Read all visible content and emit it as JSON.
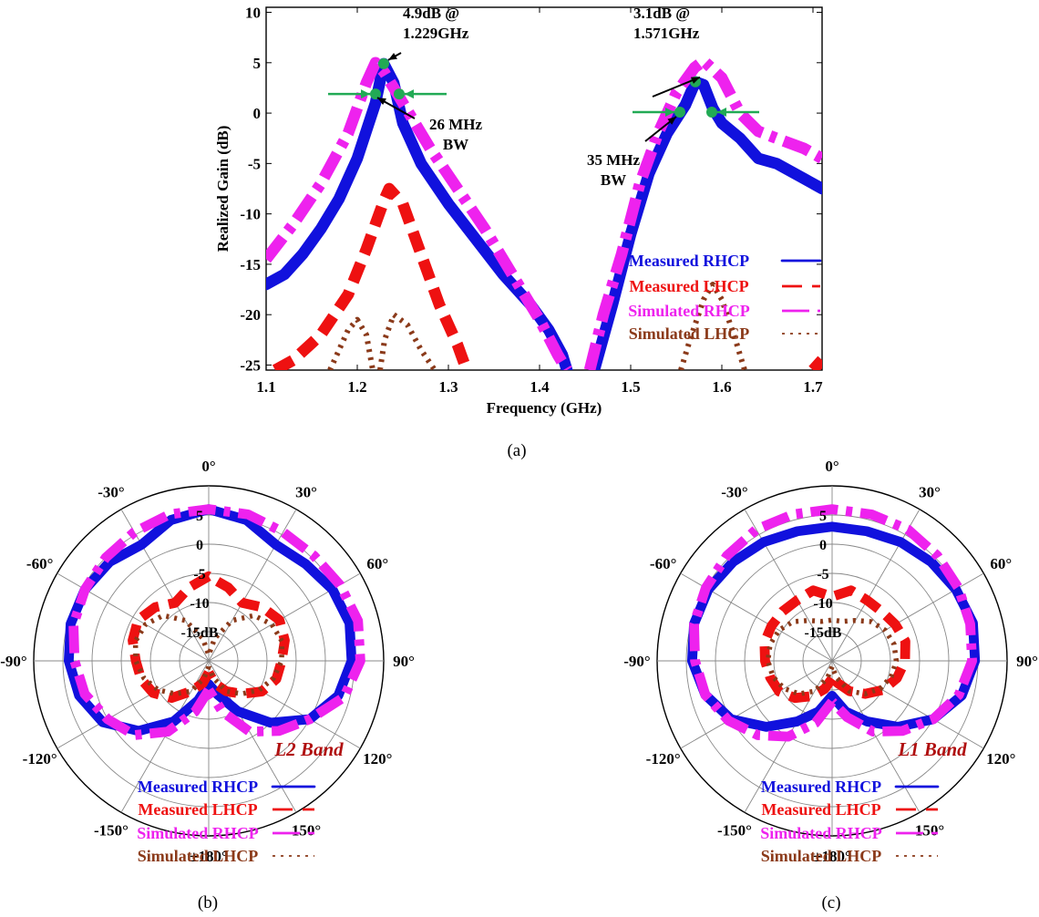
{
  "figure_labels": {
    "a": "(a)",
    "b": "(b)",
    "c": "(c)"
  },
  "colors": {
    "measured_rhcp": "#1111dd",
    "measured_lhcp": "#ee1111",
    "simulated_rhcp": "#ee22ee",
    "simulated_lhcp": "#8b3a1a",
    "marker": "#22aa55",
    "band_label": "#b01010",
    "grid": "#888888"
  },
  "chart_data": [
    {
      "id": "a",
      "type": "line",
      "xlabel": "Frequency (GHz)",
      "ylabel": "Realized Gain (dB)",
      "xlim": [
        1.1,
        1.71
      ],
      "ylim": [
        -25.5,
        10.5
      ],
      "xticks": [
        "1.1",
        "1.2",
        "1.3",
        "1.4",
        "1.5",
        "1.6",
        "1.7"
      ],
      "yticks": [
        "10",
        "5",
        "0",
        "-5",
        "-10",
        "-15",
        "-20",
        "-25"
      ],
      "grid": false,
      "legend_position": "bottom-right",
      "series": [
        {
          "name": "Measured RHCP",
          "style": "solid",
          "color": "#1111dd",
          "segments": [
            [
              [
                1.1,
                -17
              ],
              [
                1.12,
                -16
              ],
              [
                1.14,
                -14
              ],
              [
                1.16,
                -11.5
              ],
              [
                1.18,
                -8.5
              ],
              [
                1.2,
                -4.5
              ],
              [
                1.22,
                1
              ],
              [
                1.229,
                4.9
              ],
              [
                1.24,
                3
              ],
              [
                1.25,
                -1
              ],
              [
                1.27,
                -5
              ],
              [
                1.3,
                -9
              ],
              [
                1.33,
                -12.5
              ],
              [
                1.36,
                -16
              ],
              [
                1.39,
                -19
              ],
              [
                1.41,
                -21.5
              ],
              [
                1.425,
                -24
              ],
              [
                1.43,
                -25.5
              ]
            ],
            [
              [
                1.46,
                -25.5
              ],
              [
                1.48,
                -19
              ],
              [
                1.5,
                -12
              ],
              [
                1.52,
                -6
              ],
              [
                1.54,
                -2
              ],
              [
                1.56,
                0.8
              ],
              [
                1.571,
                3.1
              ],
              [
                1.58,
                2.8
              ],
              [
                1.59,
                0.5
              ],
              [
                1.6,
                -1
              ],
              [
                1.62,
                -2.5
              ],
              [
                1.64,
                -4.5
              ],
              [
                1.66,
                -5
              ],
              [
                1.69,
                -6.5
              ],
              [
                1.71,
                -7.5
              ]
            ]
          ]
        },
        {
          "name": "Measured LHCP",
          "style": "dashed",
          "color": "#ee1111",
          "segments": [
            [
              [
                1.11,
                -25.5
              ],
              [
                1.13,
                -24.5
              ],
              [
                1.16,
                -22
              ],
              [
                1.19,
                -18
              ],
              [
                1.21,
                -13.5
              ],
              [
                1.23,
                -8.5
              ],
              [
                1.235,
                -7.5
              ],
              [
                1.25,
                -9
              ],
              [
                1.27,
                -14
              ],
              [
                1.29,
                -19
              ],
              [
                1.31,
                -23
              ],
              [
                1.32,
                -25.5
              ]
            ],
            [
              [
                1.7,
                -25.5
              ],
              [
                1.71,
                -24.5
              ]
            ]
          ]
        },
        {
          "name": "Simulated RHCP",
          "style": "dashdot",
          "color": "#ee22ee",
          "segments": [
            [
              [
                1.1,
                -14.5
              ],
              [
                1.13,
                -11
              ],
              [
                1.16,
                -7
              ],
              [
                1.19,
                -2
              ],
              [
                1.21,
                3
              ],
              [
                1.22,
                5
              ],
              [
                1.23,
                4
              ],
              [
                1.25,
                1
              ],
              [
                1.28,
                -3.5
              ],
              [
                1.31,
                -7.5
              ],
              [
                1.34,
                -11.5
              ],
              [
                1.37,
                -16
              ],
              [
                1.4,
                -20.5
              ],
              [
                1.42,
                -24
              ],
              [
                1.43,
                -25.5
              ]
            ],
            [
              [
                1.455,
                -25.5
              ],
              [
                1.47,
                -20
              ],
              [
                1.49,
                -14
              ],
              [
                1.51,
                -7
              ],
              [
                1.53,
                -2
              ],
              [
                1.55,
                2
              ],
              [
                1.57,
                4.5
              ],
              [
                1.58,
                5.2
              ],
              [
                1.6,
                3.5
              ],
              [
                1.62,
                0
              ],
              [
                1.64,
                -1.8
              ],
              [
                1.66,
                -2.5
              ],
              [
                1.69,
                -3.5
              ],
              [
                1.71,
                -4.5
              ]
            ]
          ]
        },
        {
          "name": "Simulated LHCP",
          "style": "dotted",
          "color": "#8b3a1a",
          "segments": [
            [
              [
                1.17,
                -25.5
              ],
              [
                1.18,
                -23.5
              ],
              [
                1.19,
                -21.5
              ],
              [
                1.2,
                -20.5
              ],
              [
                1.21,
                -22
              ],
              [
                1.215,
                -24.5
              ],
              [
                1.217,
                -25.5
              ]
            ],
            [
              [
                1.225,
                -25.5
              ],
              [
                1.23,
                -22.5
              ],
              [
                1.24,
                -20
              ],
              [
                1.255,
                -21
              ],
              [
                1.27,
                -23.5
              ],
              [
                1.285,
                -25.5
              ]
            ],
            [
              [
                1.555,
                -25.5
              ],
              [
                1.565,
                -22.5
              ],
              [
                1.58,
                -18.5
              ],
              [
                1.59,
                -17
              ],
              [
                1.6,
                -18.5
              ],
              [
                1.615,
                -22.5
              ],
              [
                1.625,
                -25.5
              ]
            ]
          ]
        }
      ],
      "annotations": [
        {
          "text_lines": [
            "4.9dB @",
            "1.229GHz"
          ],
          "point": [
            1.229,
            4.9
          ]
        },
        {
          "text_lines": [
            "26 MHz",
            "BW"
          ],
          "points": [
            [
              1.22,
              1.9
            ],
            [
              1.246,
              1.9
            ]
          ]
        },
        {
          "text_lines": [
            "3.1dB @",
            "1.571GHz"
          ],
          "point": [
            1.571,
            3.1
          ]
        },
        {
          "text_lines": [
            "35 MHz",
            "BW"
          ],
          "points": [
            [
              1.554,
              0.1
            ],
            [
              1.589,
              0.1
            ]
          ]
        }
      ]
    },
    {
      "id": "b",
      "type": "polar",
      "band_label": "L2 Band",
      "angle_labels": [
        "0°",
        "30°",
        "60°",
        "90°",
        "120°",
        "150°",
        "±180°",
        "-150°",
        "-120°",
        "-90°",
        "-60°",
        "-30°"
      ],
      "radial_labels": [
        "5",
        "0",
        "-5",
        "-10",
        "-15dB"
      ],
      "rlim": [
        -20,
        10
      ],
      "legend_position": "bottom",
      "series": [
        {
          "name": "Measured RHCP",
          "style": "solid",
          "color": "#1111dd",
          "theta": [
            -180,
            -165,
            -150,
            -135,
            -120,
            -105,
            -90,
            -75,
            -60,
            -45,
            -30,
            -15,
            0,
            15,
            30,
            45,
            60,
            75,
            90,
            105,
            120,
            135,
            150,
            165,
            180
          ],
          "r": [
            -16,
            -13,
            -8,
            -3,
            1,
            3,
            4,
            4.5,
            4.5,
            4,
            3,
            5,
            6,
            5,
            3,
            3.5,
            4.5,
            5,
            4.5,
            3,
            0,
            -5,
            -10,
            -14,
            -16
          ]
        },
        {
          "name": "Measured LHCP",
          "style": "dashed",
          "color": "#ee1111",
          "theta": [
            -180,
            -165,
            -150,
            -135,
            -120,
            -105,
            -90,
            -75,
            -60,
            -45,
            -30,
            -15,
            0,
            15,
            30,
            45,
            60,
            75,
            90,
            105,
            120,
            135,
            150,
            165,
            180
          ],
          "r": [
            -18,
            -16,
            -14,
            -11,
            -9,
            -8,
            -7.5,
            -6.5,
            -6,
            -7,
            -8.5,
            -7,
            -5.5,
            -7,
            -8.5,
            -7,
            -6,
            -6.5,
            -7.5,
            -8,
            -9.5,
            -12,
            -14,
            -16,
            -18
          ]
        },
        {
          "name": "Simulated RHCP",
          "style": "dashdot",
          "color": "#ee22ee",
          "theta": [
            -180,
            -165,
            -150,
            -135,
            -120,
            -105,
            -90,
            -75,
            -60,
            -45,
            -30,
            -15,
            0,
            15,
            30,
            45,
            60,
            75,
            90,
            105,
            120,
            135,
            150,
            165,
            180
          ],
          "r": [
            -15,
            -11,
            -6,
            -2,
            0,
            2,
            3,
            4,
            4.5,
            5,
            5.5,
            6,
            6,
            6,
            5.5,
            5.5,
            6,
            6.5,
            6,
            4,
            0,
            -3,
            -6,
            -11,
            -15
          ]
        },
        {
          "name": "Simulated LHCP",
          "style": "dotted",
          "color": "#8b3a1a",
          "theta": [
            -180,
            -165,
            -150,
            -135,
            -120,
            -105,
            -90,
            -75,
            -60,
            -45,
            -30,
            -15,
            0,
            15,
            30,
            45,
            60,
            75,
            90,
            105,
            120,
            135,
            150,
            165,
            180
          ],
          "r": [
            -19,
            -17,
            -14,
            -12,
            -10,
            -8.5,
            -7.5,
            -7,
            -7.5,
            -9,
            -12,
            -16,
            -19,
            -16,
            -12,
            -9,
            -7.5,
            -7,
            -7.5,
            -8.5,
            -10,
            -12,
            -14,
            -17,
            -19
          ]
        }
      ]
    },
    {
      "id": "c",
      "type": "polar",
      "band_label": "L1 Band",
      "angle_labels": [
        "0°",
        "30°",
        "60°",
        "90°",
        "120°",
        "150°",
        "±180°",
        "-150°",
        "-120°",
        "-90°",
        "-60°",
        "-30°"
      ],
      "radial_labels": [
        "5",
        "0",
        "-5",
        "-10",
        "-15dB"
      ],
      "rlim": [
        -20,
        10
      ],
      "legend_position": "bottom",
      "series": [
        {
          "name": "Measured RHCP",
          "style": "solid",
          "color": "#1111dd",
          "theta": [
            -180,
            -165,
            -150,
            -135,
            -120,
            -105,
            -90,
            -75,
            -60,
            -45,
            -30,
            -15,
            0,
            15,
            30,
            45,
            60,
            75,
            90,
            105,
            120,
            135,
            150,
            165,
            180
          ],
          "r": [
            -14,
            -11,
            -8,
            -4,
            0,
            2.5,
            4,
            4.5,
            4.5,
            4,
            3.5,
            3,
            3,
            3,
            3.5,
            4,
            4.5,
            5,
            4.5,
            3,
            0,
            -4,
            -8,
            -11,
            -14
          ]
        },
        {
          "name": "Measured LHCP",
          "style": "dashed",
          "color": "#ee1111",
          "theta": [
            -180,
            -165,
            -150,
            -135,
            -120,
            -105,
            -90,
            -75,
            -60,
            -45,
            -30,
            -15,
            0,
            15,
            30,
            45,
            60,
            75,
            90,
            105,
            120,
            135,
            150,
            165,
            180
          ],
          "r": [
            -17,
            -15,
            -13,
            -11,
            -9.5,
            -9,
            -8.5,
            -8,
            -8,
            -8,
            -8,
            -7.5,
            -9,
            -7.5,
            -8,
            -8,
            -7.5,
            -7,
            -7.5,
            -8.5,
            -10,
            -12,
            -14,
            -16,
            -17
          ]
        },
        {
          "name": "Simulated RHCP",
          "style": "dashdot",
          "color": "#ee22ee",
          "theta": [
            -180,
            -165,
            -150,
            -135,
            -120,
            -105,
            -90,
            -75,
            -60,
            -45,
            -30,
            -15,
            0,
            15,
            30,
            45,
            60,
            75,
            90,
            105,
            120,
            135,
            150,
            165,
            180
          ],
          "r": [
            -13,
            -9,
            -5,
            -2,
            0.5,
            2.5,
            3.5,
            4.5,
            5,
            5.5,
            6,
            6,
            6,
            6,
            6,
            5.5,
            5,
            4.5,
            4,
            2.5,
            0,
            -3,
            -6,
            -10,
            -13
          ]
        },
        {
          "name": "Simulated LHCP",
          "style": "dotted",
          "color": "#8b3a1a",
          "theta": [
            -180,
            -165,
            -150,
            -135,
            -120,
            -105,
            -90,
            -75,
            -60,
            -45,
            -30,
            -15,
            0,
            15,
            30,
            45,
            60,
            75,
            90,
            105,
            120,
            135,
            150,
            165,
            180
          ],
          "r": [
            -19,
            -17,
            -14,
            -12,
            -10.5,
            -9.5,
            -9,
            -9,
            -9.5,
            -10.5,
            -12,
            -13,
            -13,
            -13,
            -12,
            -10.5,
            -9.5,
            -9,
            -9,
            -9.5,
            -10.5,
            -12,
            -14,
            -17,
            -19
          ]
        }
      ]
    }
  ]
}
